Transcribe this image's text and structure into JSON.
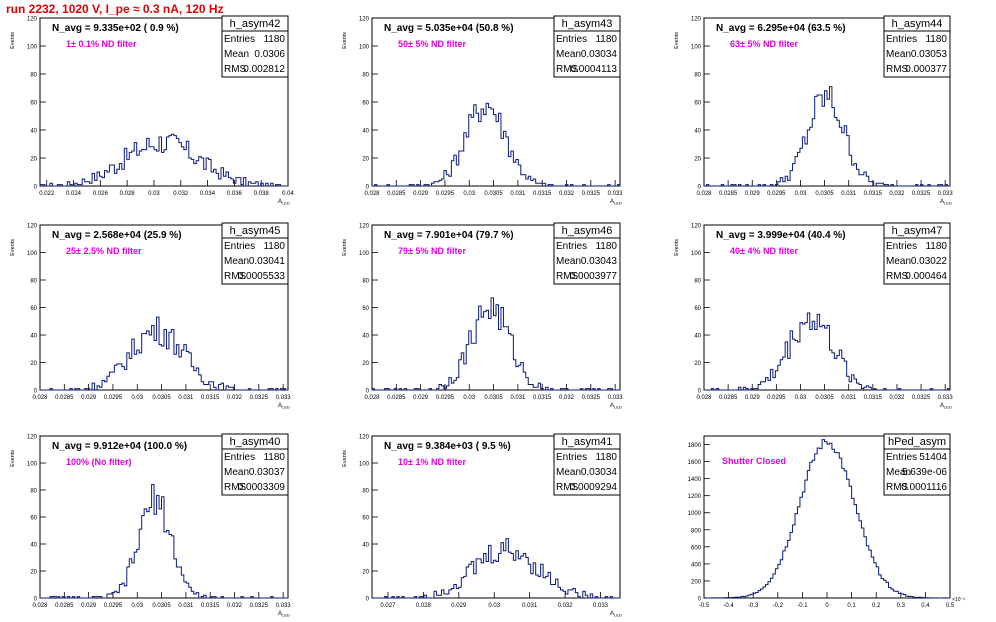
{
  "page_title": "run 2232,  1020 V, I_pe ≈ 0.3 nA, 120 Hz",
  "chart_data": [
    {
      "type": "histogram",
      "name": "h_asym42",
      "annotation": "N_avg = 9.335e+02 ( 0.9 %)",
      "filter_label": "1± 0.1% ND filter",
      "stats": {
        "entries": "1180",
        "mean": "0.0306",
        "rms": "0.002812"
      },
      "xlim": [
        0.0215,
        0.04
      ],
      "ylim": [
        0,
        120
      ],
      "xticks": [
        "0.022",
        "0.024",
        "0.026",
        "0.028",
        "0.03",
        "0.032",
        "0.034",
        "0.036",
        "0.038",
        "0.04"
      ],
      "xtick_values": [
        0.022,
        0.024,
        0.026,
        0.028,
        0.03,
        0.032,
        0.034,
        0.036,
        0.038,
        0.04
      ],
      "yticks": [
        "0",
        "20",
        "40",
        "60",
        "80",
        "100",
        "120"
      ],
      "ytick_values": [
        0,
        20,
        40,
        60,
        80,
        100,
        120
      ],
      "xlabel": "A",
      "xlabel_sub": "LED",
      "ylabel": "Events",
      "stats_labels": [
        "Entries",
        "Mean",
        "RMS"
      ]
    },
    {
      "type": "histogram",
      "name": "h_asym43",
      "annotation": "N_avg = 5.035e+04 (50.8 %)",
      "filter_label": "50± 5% ND filter",
      "stats": {
        "entries": "1180",
        "mean": "0.03034",
        "rms": "0.0004113"
      },
      "xlim": [
        0.028,
        0.0331
      ],
      "ylim": [
        0,
        120
      ],
      "xticks": [
        "0.028",
        "0.0285",
        "0.029",
        "0.0295",
        "0.03",
        "0.0305",
        "0.031",
        "0.0315",
        "0.032",
        "0.0325",
        "0.033"
      ],
      "xtick_values": [
        0.028,
        0.0285,
        0.029,
        0.0295,
        0.03,
        0.0305,
        0.031,
        0.0315,
        0.032,
        0.0325,
        0.033
      ],
      "yticks": [
        "0",
        "20",
        "40",
        "60",
        "80",
        "100",
        "120"
      ],
      "ytick_values": [
        0,
        20,
        40,
        60,
        80,
        100,
        120
      ],
      "xlabel": "A",
      "xlabel_sub": "LED",
      "ylabel": "Events",
      "stats_labels": [
        "Entries",
        "Mean",
        "RMS"
      ]
    },
    {
      "type": "histogram",
      "name": "h_asym44",
      "annotation": "N_avg = 6.295e+04 (63.5 %)",
      "filter_label": "63± 5% ND filter",
      "stats": {
        "entries": "1180",
        "mean": "0.03053",
        "rms": "0.000377"
      },
      "xlim": [
        0.028,
        0.0331
      ],
      "ylim": [
        0,
        120
      ],
      "xticks": [
        "0.028",
        "0.0285",
        "0.029",
        "0.0295",
        "0.03",
        "0.0305",
        "0.031",
        "0.0315",
        "0.032",
        "0.0325",
        "0.033"
      ],
      "xtick_values": [
        0.028,
        0.0285,
        0.029,
        0.0295,
        0.03,
        0.0305,
        0.031,
        0.0315,
        0.032,
        0.0325,
        0.033
      ],
      "yticks": [
        "0",
        "20",
        "40",
        "60",
        "80",
        "100",
        "120"
      ],
      "ytick_values": [
        0,
        20,
        40,
        60,
        80,
        100,
        120
      ],
      "xlabel": "A",
      "xlabel_sub": "LED",
      "ylabel": "Events",
      "stats_labels": [
        "Entries",
        "Mean",
        "RMS"
      ]
    },
    {
      "type": "histogram",
      "name": "h_asym45",
      "annotation": "N_avg = 2.568e+04 (25.9 %)",
      "filter_label": "25± 2.5% ND filter",
      "stats": {
        "entries": "1180",
        "mean": "0.03041",
        "rms": "0.0005533"
      },
      "xlim": [
        0.028,
        0.0331
      ],
      "ylim": [
        0,
        120
      ],
      "xticks": [
        "0.028",
        "0.0285",
        "0.029",
        "0.0295",
        "0.03",
        "0.0305",
        "0.031",
        "0.0315",
        "0.032",
        "0.0325",
        "0.033"
      ],
      "xtick_values": [
        0.028,
        0.0285,
        0.029,
        0.0295,
        0.03,
        0.0305,
        0.031,
        0.0315,
        0.032,
        0.0325,
        0.033
      ],
      "yticks": [
        "0",
        "20",
        "40",
        "60",
        "80",
        "100",
        "120"
      ],
      "ytick_values": [
        0,
        20,
        40,
        60,
        80,
        100,
        120
      ],
      "xlabel": "A",
      "xlabel_sub": "LED",
      "ylabel": "Events",
      "stats_labels": [
        "Entries",
        "Mean",
        "RMS"
      ]
    },
    {
      "type": "histogram",
      "name": "h_asym46",
      "annotation": "N_avg = 7.901e+04 (79.7 %)",
      "filter_label": "79± 5% ND filter",
      "stats": {
        "entries": "1180",
        "mean": "0.03043",
        "rms": "0.0003977"
      },
      "xlim": [
        0.028,
        0.0331
      ],
      "ylim": [
        0,
        120
      ],
      "xticks": [
        "0.028",
        "0.0285",
        "0.029",
        "0.0295",
        "0.03",
        "0.0305",
        "0.031",
        "0.0315",
        "0.032",
        "0.0325",
        "0.033"
      ],
      "xtick_values": [
        0.028,
        0.0285,
        0.029,
        0.0295,
        0.03,
        0.0305,
        0.031,
        0.0315,
        0.032,
        0.0325,
        0.033
      ],
      "yticks": [
        "0",
        "20",
        "40",
        "60",
        "80",
        "100",
        "120"
      ],
      "ytick_values": [
        0,
        20,
        40,
        60,
        80,
        100,
        120
      ],
      "xlabel": "A",
      "xlabel_sub": "LED",
      "ylabel": "Events",
      "stats_labels": [
        "Entries",
        "Mean",
        "RMS"
      ]
    },
    {
      "type": "histogram",
      "name": "h_asym47",
      "annotation": "N_avg = 3.999e+04 (40.4 %)",
      "filter_label": "40± 4% ND filter",
      "stats": {
        "entries": "1180",
        "mean": "0.03022",
        "rms": "0.000464"
      },
      "xlim": [
        0.028,
        0.0331
      ],
      "ylim": [
        0,
        120
      ],
      "xticks": [
        "0.028",
        "0.0285",
        "0.029",
        "0.0295",
        "0.03",
        "0.0305",
        "0.031",
        "0.0315",
        "0.032",
        "0.0325",
        "0.033"
      ],
      "xtick_values": [
        0.028,
        0.0285,
        0.029,
        0.0295,
        0.03,
        0.0305,
        0.031,
        0.0315,
        0.032,
        0.0325,
        0.033
      ],
      "yticks": [
        "0",
        "20",
        "40",
        "60",
        "80",
        "100",
        "120"
      ],
      "ytick_values": [
        0,
        20,
        40,
        60,
        80,
        100,
        120
      ],
      "xlabel": "A",
      "xlabel_sub": "LED",
      "ylabel": "Events",
      "stats_labels": [
        "Entries",
        "Mean",
        "RMS"
      ]
    },
    {
      "type": "histogram",
      "name": "h_asym40",
      "annotation": "N_avg = 9.912e+04 (100.0 %)",
      "filter_label": "100% (No filter)",
      "stats": {
        "entries": "1180",
        "mean": "0.03037",
        "rms": "0.0003309"
      },
      "xlim": [
        0.028,
        0.0331
      ],
      "ylim": [
        0,
        120
      ],
      "xticks": [
        "0.028",
        "0.0285",
        "0.029",
        "0.0295",
        "0.03",
        "0.0305",
        "0.031",
        "0.0315",
        "0.032",
        "0.0325",
        "0.033"
      ],
      "xtick_values": [
        0.028,
        0.0285,
        0.029,
        0.0295,
        0.03,
        0.0305,
        0.031,
        0.0315,
        0.032,
        0.0325,
        0.033
      ],
      "yticks": [
        "0",
        "20",
        "40",
        "60",
        "80",
        "100",
        "120"
      ],
      "ytick_values": [
        0,
        20,
        40,
        60,
        80,
        100,
        120
      ],
      "xlabel": "A",
      "xlabel_sub": "LED",
      "ylabel": "Events",
      "stats_labels": [
        "Entries",
        "Mean",
        "RMS"
      ]
    },
    {
      "type": "histogram",
      "name": "h_asym41",
      "annotation": "N_avg = 9.384e+03 ( 9.5 %)",
      "filter_label": "10± 1% ND filter",
      "stats": {
        "entries": "1180",
        "mean": "0.03034",
        "rms": "0.0009294"
      },
      "xlim": [
        0.02655,
        0.03355
      ],
      "ylim": [
        0,
        120
      ],
      "xticks": [
        "0.027",
        "0.028",
        "0.029",
        "0.03",
        "0.031",
        "0.032",
        "0.033"
      ],
      "xtick_values": [
        0.027,
        0.028,
        0.029,
        0.03,
        0.031,
        0.032,
        0.033
      ],
      "yticks": [
        "0",
        "20",
        "40",
        "60",
        "80",
        "100",
        "120"
      ],
      "ytick_values": [
        0,
        20,
        40,
        60,
        80,
        100,
        120
      ],
      "xlabel": "A",
      "xlabel_sub": "LED",
      "ylabel": "Events",
      "stats_labels": [
        "Entries",
        "Mean",
        "RMS"
      ]
    },
    {
      "type": "histogram",
      "name": "hPed_asym",
      "annotation": "",
      "filter_label": "Shutter Closed",
      "stats": {
        "entries": "51404",
        "mean": "5.639e-06",
        "rms": "0.0001116"
      },
      "xlim": [
        -0.5,
        0.5
      ],
      "ylim": [
        0,
        1900
      ],
      "x_exponent": "×10⁻³",
      "xticks": [
        "-0.5",
        "-0.4",
        "-0.3",
        "-0.2",
        "-0.1",
        "0",
        "0.1",
        "0.2",
        "0.3",
        "0.4",
        "0.5"
      ],
      "xtick_values": [
        -0.5,
        -0.4,
        -0.3,
        -0.2,
        -0.1,
        0,
        0.1,
        0.2,
        0.3,
        0.4,
        0.5
      ],
      "yticks": [
        "0",
        "200",
        "400",
        "600",
        "800",
        "1000",
        "1200",
        "1400",
        "1600",
        "1800"
      ],
      "ytick_values": [
        0,
        200,
        400,
        600,
        800,
        1000,
        1200,
        1400,
        1600,
        1800
      ],
      "xlabel": "",
      "xlabel_sub": "",
      "ylabel": "",
      "stats_labels": [
        "Entries",
        "Mean",
        "RMS"
      ]
    }
  ],
  "colors": {
    "histogram_line": "#0a1a7a",
    "annotation_text": "#e000e0",
    "title_red": "#e00000"
  }
}
